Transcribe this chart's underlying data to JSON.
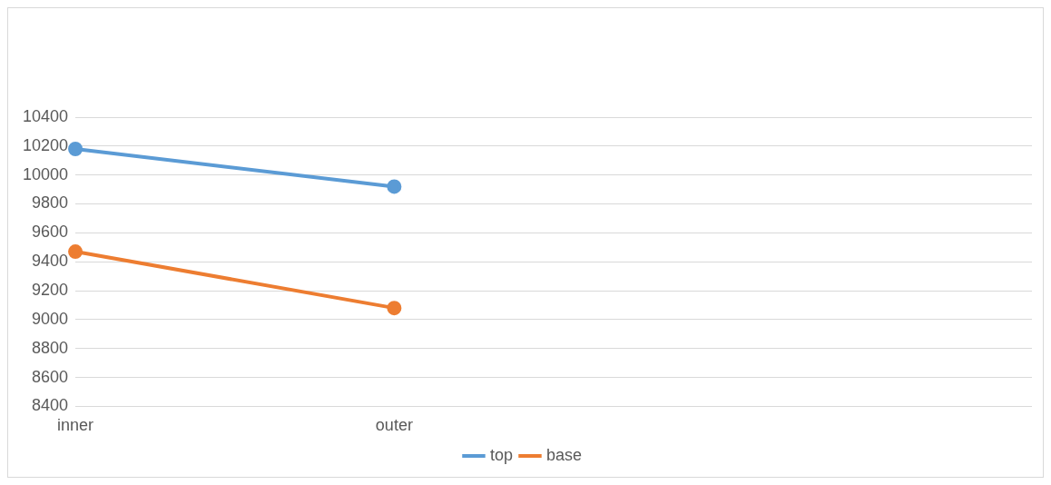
{
  "chart_data": {
    "type": "line",
    "categories": [
      "inner",
      "outer",
      null,
      null
    ],
    "series": [
      {
        "name": "top",
        "color": "#5b9bd5",
        "values": [
          10180,
          9920,
          null,
          null
        ]
      },
      {
        "name": "base",
        "color": "#ed7d31",
        "values": [
          9470,
          9080,
          null,
          null
        ]
      }
    ],
    "ylim": [
      8400,
      10400
    ],
    "yticks": [
      8400,
      8600,
      8800,
      9000,
      9200,
      9400,
      9600,
      9800,
      10000,
      10200,
      10400
    ],
    "grid": "y",
    "legend": "bottom",
    "marker": "circle"
  }
}
